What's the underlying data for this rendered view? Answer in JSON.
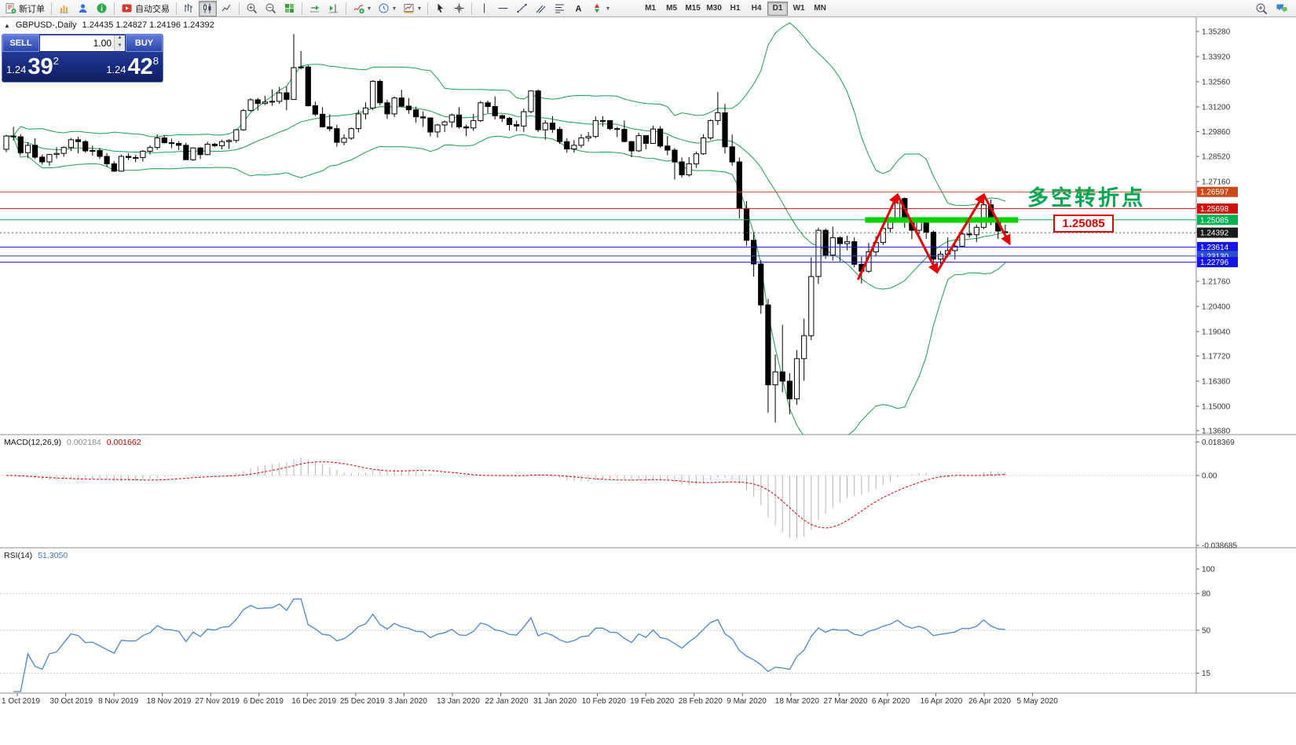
{
  "toolbar": {
    "new_order_label": "新订单",
    "autotrade_label": "自动交易",
    "timeframes": [
      "M1",
      "M5",
      "M15",
      "M30",
      "H1",
      "H4",
      "D1",
      "W1",
      "MN"
    ],
    "active_timeframe": "D1"
  },
  "chart": {
    "title": "GBPUSD-,Daily",
    "ohlc": "1.24435 1.24827 1.24196 1.24392",
    "trade_panel": {
      "sell_label": "SELL",
      "buy_label": "BUY",
      "volume": "1.00",
      "sell_price_prefix": "1.24",
      "sell_price_big": "39",
      "sell_price_sup": "2",
      "buy_price_prefix": "1.24",
      "buy_price_big": "42",
      "buy_price_sup": "8"
    },
    "y_axis": {
      "max": 1.3528,
      "min": 1.1368,
      "labels": [
        "1.35280",
        "1.33920",
        "1.32560",
        "1.31200",
        "1.29860",
        "1.28520",
        "1.27160",
        "1.25800",
        "1.24440",
        "1.23080",
        "1.21760",
        "1.20400",
        "1.19040",
        "1.17720",
        "1.16360",
        "1.15000",
        "1.13680"
      ]
    },
    "x_axis_dates": [
      "1 Oct 2019",
      "30 Oct 2019",
      "8 Nov 2019",
      "18 Nov 2019",
      "27 Nov 2019",
      "6 Dec 2019",
      "16 Dec 2019",
      "25 Dec 2019",
      "3 Jan 2020",
      "13 Jan 2020",
      "22 Jan 2020",
      "31 Jan 2020",
      "10 Feb 2020",
      "19 Feb 2020",
      "28 Feb 2020",
      "9 Mar 2020",
      "18 Mar 2020",
      "27 Mar 2020",
      "6 Apr 2020",
      "16 Apr 2020",
      "26 Apr 2020",
      "5 May 2020"
    ],
    "hlines": [
      {
        "price": 1.26597,
        "label": "1.26597",
        "color": "#cc4a1a"
      },
      {
        "price": 1.25698,
        "label": "1.25698",
        "color": "#cc1111"
      },
      {
        "price": 1.25085,
        "label": "1.25085",
        "color": "#00b050"
      },
      {
        "price": 1.24392,
        "label": "1.24392",
        "color": "#1a1a1a",
        "style": "current"
      },
      {
        "price": 1.23614,
        "label": "1.23614",
        "color": "#1414e6"
      },
      {
        "price": 1.2313,
        "label": "1.23130",
        "color": "#2a50d0"
      },
      {
        "price": 1.22796,
        "label": "1.22796",
        "color": "#1414e6"
      }
    ],
    "annotations": {
      "turning_point_text": "多空转折点",
      "turning_point_color": "#00a651",
      "price_label_box": "1.25085",
      "price_label_color": "#e00000",
      "zigzag": [
        [
          118.5,
          1.2185
        ],
        [
          124,
          1.2645
        ],
        [
          129.5,
          1.2225
        ],
        [
          136,
          1.2645
        ],
        [
          139.6,
          1.238
        ]
      ],
      "zigzag_color": "#e60000",
      "support_bar": {
        "start_index": 119.5,
        "end_index": 140.8,
        "price": 1.2508,
        "color": "#00d400"
      }
    }
  },
  "macd": {
    "title": "MACD(12,26,9)",
    "value_main": "0.002184",
    "value_signal": "0.001662",
    "scale": [
      {
        "label": "0.018369",
        "value": 0.018369
      },
      {
        "label": "0.00",
        "value": 0
      },
      {
        "label": "-0.038685",
        "value": -0.038685
      }
    ],
    "hist_color": "#b4b4b4",
    "signal_color": "#d40000"
  },
  "rsi": {
    "title": "RSI(14)",
    "value": "51.3050",
    "levels": [
      {
        "label": "100",
        "value": 100
      },
      {
        "label": "80",
        "value": 80
      },
      {
        "label": "50",
        "value": 50
      },
      {
        "label": "15",
        "value": 15
      }
    ],
    "line_color": "#4a86c8"
  },
  "chart_data": {
    "type": "candlestick",
    "symbol": "GBPUSD",
    "period": "Daily",
    "indicators": [
      "Bollinger Bands(20,2)",
      "MACD(12,26,9)",
      "RSI(14)"
    ],
    "bollinger_color": "#1e9e50",
    "bull_color": "#ffffff",
    "bear_color": "#000000",
    "candles": [
      [
        1.289,
        1.297,
        1.2875,
        1.2962
      ],
      [
        1.2962,
        1.3012,
        1.2938,
        1.2958
      ],
      [
        1.2958,
        1.2972,
        1.2862,
        1.2872
      ],
      [
        1.2872,
        1.2928,
        1.2842,
        1.2912
      ],
      [
        1.2912,
        1.295,
        1.2838,
        1.2848
      ],
      [
        1.2848,
        1.2862,
        1.2808,
        1.2822
      ],
      [
        1.2822,
        1.2866,
        1.2802,
        1.2862
      ],
      [
        1.2862,
        1.2902,
        1.284,
        1.2868
      ],
      [
        1.2868,
        1.2906,
        1.285,
        1.29
      ],
      [
        1.29,
        1.2952,
        1.288,
        1.2942
      ],
      [
        1.2942,
        1.2958,
        1.2868,
        1.2932
      ],
      [
        1.2932,
        1.294,
        1.2872,
        1.2882
      ],
      [
        1.2882,
        1.291,
        1.2856,
        1.2884
      ],
      [
        1.2884,
        1.2898,
        1.2838,
        1.2852
      ],
      [
        1.2852,
        1.287,
        1.2794,
        1.2812
      ],
      [
        1.2812,
        1.2826,
        1.2768,
        1.2772
      ],
      [
        1.2772,
        1.2862,
        1.277,
        1.2852
      ],
      [
        1.2852,
        1.287,
        1.2832,
        1.2846
      ],
      [
        1.2846,
        1.286,
        1.282,
        1.2846
      ],
      [
        1.2846,
        1.2886,
        1.2824,
        1.288
      ],
      [
        1.288,
        1.2912,
        1.2862,
        1.29
      ],
      [
        1.29,
        1.2972,
        1.2888,
        1.2952
      ],
      [
        1.2952,
        1.2968,
        1.2922,
        1.2926
      ],
      [
        1.2926,
        1.2948,
        1.2896,
        1.2922
      ],
      [
        1.2922,
        1.2934,
        1.2886,
        1.2912
      ],
      [
        1.2912,
        1.2926,
        1.2832,
        1.2834
      ],
      [
        1.2834,
        1.29,
        1.2828,
        1.2898
      ],
      [
        1.2898,
        1.2902,
        1.2838,
        1.2862
      ],
      [
        1.2862,
        1.2932,
        1.2858,
        1.2918
      ],
      [
        1.2918,
        1.2926,
        1.2902,
        1.291
      ],
      [
        1.291,
        1.2942,
        1.289,
        1.2932
      ],
      [
        1.2932,
        1.2946,
        1.2892,
        1.2938
      ],
      [
        1.2938,
        1.3,
        1.2926,
        1.2996
      ],
      [
        1.2996,
        1.3108,
        1.299,
        1.31
      ],
      [
        1.31,
        1.3166,
        1.3094,
        1.3158
      ],
      [
        1.3158,
        1.3168,
        1.31,
        1.3138
      ],
      [
        1.3138,
        1.318,
        1.313,
        1.3146
      ],
      [
        1.3146,
        1.3214,
        1.3126,
        1.315
      ],
      [
        1.315,
        1.3228,
        1.3136,
        1.3196
      ],
      [
        1.3196,
        1.323,
        1.3102,
        1.316
      ],
      [
        1.316,
        1.3514,
        1.316,
        1.3332
      ],
      [
        1.3332,
        1.3422,
        1.3322,
        1.3336
      ],
      [
        1.3336,
        1.3344,
        1.3122,
        1.3126
      ],
      [
        1.3126,
        1.3148,
        1.307,
        1.308
      ],
      [
        1.308,
        1.3118,
        1.3008,
        1.3012
      ],
      [
        1.3012,
        1.308,
        1.2988,
        1.3002
      ],
      [
        1.3002,
        1.3022,
        1.2904,
        1.2928
      ],
      [
        1.2928,
        1.2972,
        1.2912,
        1.295
      ],
      [
        1.295,
        1.3008,
        1.2942,
        1.3002
      ],
      [
        1.3002,
        1.3104,
        1.2982,
        1.3082
      ],
      [
        1.3082,
        1.3144,
        1.3052,
        1.3114
      ],
      [
        1.3114,
        1.3264,
        1.3102,
        1.3258
      ],
      [
        1.3258,
        1.3268,
        1.3128,
        1.3142
      ],
      [
        1.3142,
        1.3158,
        1.3054,
        1.3082
      ],
      [
        1.3082,
        1.3176,
        1.3064,
        1.3168
      ],
      [
        1.3168,
        1.3212,
        1.3118,
        1.3124
      ],
      [
        1.3124,
        1.3168,
        1.3082,
        1.3104
      ],
      [
        1.3104,
        1.3122,
        1.3036,
        1.3066
      ],
      [
        1.3066,
        1.3096,
        1.3012,
        1.306
      ],
      [
        1.306,
        1.3064,
        1.296,
        1.2984
      ],
      [
        1.2984,
        1.3028,
        1.2954,
        1.3022
      ],
      [
        1.3022,
        1.3046,
        1.2984,
        1.3038
      ],
      [
        1.3038,
        1.3084,
        1.3008,
        1.3076
      ],
      [
        1.3076,
        1.3118,
        1.3002,
        1.3012
      ],
      [
        1.3012,
        1.3024,
        1.2962,
        1.3006
      ],
      [
        1.3006,
        1.3082,
        1.299,
        1.3046
      ],
      [
        1.3046,
        1.3152,
        1.3038,
        1.3142
      ],
      [
        1.3142,
        1.3154,
        1.3086,
        1.3122
      ],
      [
        1.3122,
        1.3176,
        1.3052,
        1.3072
      ],
      [
        1.3072,
        1.3078,
        1.3038,
        1.3058
      ],
      [
        1.3058,
        1.3066,
        1.2992,
        1.3024
      ],
      [
        1.3024,
        1.3046,
        1.2988,
        1.3016
      ],
      [
        1.3016,
        1.311,
        1.2984,
        1.3094
      ],
      [
        1.3094,
        1.3208,
        1.3086,
        1.3206
      ],
      [
        1.3206,
        1.3214,
        1.2984,
        1.2996
      ],
      [
        1.2996,
        1.3048,
        1.2942,
        1.3032
      ],
      [
        1.3032,
        1.307,
        1.298,
        1.2998
      ],
      [
        1.2998,
        1.3012,
        1.292,
        1.2932
      ],
      [
        1.2932,
        1.295,
        1.2872,
        1.2892
      ],
      [
        1.2892,
        1.294,
        1.2872,
        1.2912
      ],
      [
        1.2912,
        1.2972,
        1.2898,
        1.2952
      ],
      [
        1.2952,
        1.2984,
        1.2932,
        1.296
      ],
      [
        1.296,
        1.3068,
        1.295,
        1.3046
      ],
      [
        1.3046,
        1.307,
        1.3014,
        1.3046
      ],
      [
        1.3046,
        1.3048,
        1.2994,
        1.3002
      ],
      [
        1.3002,
        1.3012,
        1.2956,
        1.2998
      ],
      [
        1.2998,
        1.3046,
        1.2928,
        1.2932
      ],
      [
        1.2932,
        1.2936,
        1.2848,
        1.2882
      ],
      [
        1.2882,
        1.298,
        1.2876,
        1.2964
      ],
      [
        1.2964,
        1.2966,
        1.289,
        1.2922
      ],
      [
        1.2922,
        1.3018,
        1.2922,
        1.3
      ],
      [
        1.3,
        1.3016,
        1.2898,
        1.2908
      ],
      [
        1.2908,
        1.2962,
        1.2858,
        1.2886
      ],
      [
        1.2886,
        1.2898,
        1.2726,
        1.2822
      ],
      [
        1.2822,
        1.2846,
        1.2738,
        1.2752
      ],
      [
        1.2752,
        1.2848,
        1.2742,
        1.2812
      ],
      [
        1.2812,
        1.2878,
        1.279,
        1.2866
      ],
      [
        1.2866,
        1.2972,
        1.286,
        1.2952
      ],
      [
        1.2952,
        1.3052,
        1.294,
        1.3046
      ],
      [
        1.3046,
        1.32,
        1.3022,
        1.3088
      ],
      [
        1.3088,
        1.3136,
        1.2868,
        1.2904
      ],
      [
        1.2904,
        1.297,
        1.2802,
        1.2822
      ],
      [
        1.2822,
        1.2846,
        1.2516,
        1.257
      ],
      [
        1.257,
        1.261,
        1.2368,
        1.2398
      ],
      [
        1.2398,
        1.2442,
        1.2202,
        1.227
      ],
      [
        1.227,
        1.229,
        1.2,
        1.2048
      ],
      [
        1.2048,
        1.208,
        1.1466,
        1.1616
      ],
      [
        1.1616,
        1.178,
        1.1412,
        1.1686
      ],
      [
        1.1686,
        1.194,
        1.1576,
        1.1636
      ],
      [
        1.1636,
        1.168,
        1.1456,
        1.154
      ],
      [
        1.154,
        1.1804,
        1.1508,
        1.1758
      ],
      [
        1.1758,
        1.1974,
        1.1638,
        1.1882
      ],
      [
        1.1882,
        1.2306,
        1.1858,
        1.2202
      ],
      [
        1.2202,
        1.2466,
        1.2162,
        1.2452
      ],
      [
        1.2452,
        1.2462,
        1.2298,
        1.2318
      ],
      [
        1.2318,
        1.2472,
        1.2288,
        1.2412
      ],
      [
        1.2412,
        1.242,
        1.2284,
        1.238
      ],
      [
        1.238,
        1.2422,
        1.2344,
        1.239
      ],
      [
        1.239,
        1.2414,
        1.2252,
        1.2268
      ],
      [
        1.2268,
        1.231,
        1.2164,
        1.223
      ],
      [
        1.223,
        1.2384,
        1.2222,
        1.2336
      ],
      [
        1.2336,
        1.242,
        1.231,
        1.2386
      ],
      [
        1.2386,
        1.2486,
        1.2372,
        1.2462
      ],
      [
        1.2462,
        1.2524,
        1.244,
        1.2516
      ],
      [
        1.2516,
        1.2648,
        1.2508,
        1.2624
      ],
      [
        1.2624,
        1.263,
        1.2466,
        1.251
      ],
      [
        1.251,
        1.2522,
        1.2404,
        1.2452
      ],
      [
        1.2452,
        1.2522,
        1.2432,
        1.25
      ],
      [
        1.25,
        1.2518,
        1.2406,
        1.2442
      ],
      [
        1.2442,
        1.245,
        1.2246,
        1.2296
      ],
      [
        1.2296,
        1.234,
        1.227,
        1.2322
      ],
      [
        1.2322,
        1.2414,
        1.2306,
        1.2342
      ],
      [
        1.2342,
        1.2386,
        1.2294,
        1.2366
      ],
      [
        1.2366,
        1.2458,
        1.236,
        1.2432
      ],
      [
        1.2432,
        1.252,
        1.2412,
        1.2428
      ],
      [
        1.2428,
        1.2484,
        1.2388,
        1.2468
      ],
      [
        1.2468,
        1.2644,
        1.2458,
        1.259
      ],
      [
        1.259,
        1.2618,
        1.248,
        1.2498
      ],
      [
        1.2498,
        1.251,
        1.2404,
        1.2448
      ],
      [
        1.2444,
        1.2483,
        1.242,
        1.2439
      ]
    ]
  }
}
